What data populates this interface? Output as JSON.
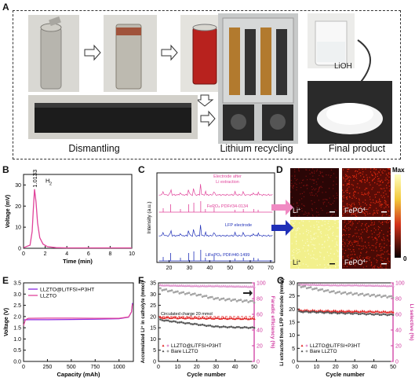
{
  "panels": {
    "A": {
      "label": "A",
      "captions": [
        "Dismantling",
        "Lithium recycling",
        "Final product"
      ],
      "lioh_label": "LiOH"
    },
    "B": {
      "label": "B",
      "peak_label": "1.0133",
      "peak_species": "H",
      "peak_sub": "2",
      "xlabel": "Time (min)",
      "ylabel": "Voltage (mV)",
      "xticks": [
        "0",
        "2",
        "4",
        "6",
        "8",
        "10"
      ],
      "yticks": [
        "0",
        "10",
        "20",
        "30"
      ]
    },
    "C": {
      "label": "C",
      "xlabel": "2θ (degree)",
      "ylabel": "Intensity (a.u.)",
      "xticks": [
        "20",
        "30",
        "40",
        "50",
        "60",
        "70"
      ],
      "traces": [
        {
          "name": "Electrode after",
          "name2": "Li extraction",
          "color": "#e0439a"
        },
        {
          "name": "FePO₄  PDF#34-0134",
          "color": "#e0439a"
        },
        {
          "name": "LFP electrode",
          "color": "#1f2fb8"
        },
        {
          "name": "LiFePO₄  PDF#40-1499",
          "color": "#1f2fb8"
        }
      ]
    },
    "D": {
      "label": "D",
      "maps": [
        "Li",
        "FePO",
        "Li",
        "FePO"
      ],
      "map_sup": [
        "+",
        "4−",
        "+",
        "4−"
      ],
      "colorbar_max": "Max",
      "colorbar_min": "0"
    },
    "E": {
      "label": "E",
      "legend": [
        "LLZTO@LiTFSI+P3HT",
        "LLZTO"
      ],
      "xlabel": "Capacity (mAh)",
      "ylabel": "Voltage (V)",
      "xticks": [
        "0",
        "250",
        "500",
        "750",
        "1000"
      ],
      "yticks": [
        "0.0",
        "0.5",
        "1.0",
        "1.5",
        "2.0",
        "2.5",
        "3.0",
        "3.5"
      ],
      "colors": {
        "a": "#8a2be2",
        "b": "#e0439a"
      }
    },
    "F": {
      "label": "F",
      "legend": [
        "LLZTO@LiTFSI+P3HT",
        "Bare LLZTO"
      ],
      "annotation": "Circulated charge 20 mmol",
      "xlabel": "Cycle number",
      "ylabel_left": "Accumulated Li⁺ in catholyte (mmol)",
      "ylabel_right": "Faradic efficiency (%)",
      "xticks": [
        "0",
        "10",
        "20",
        "30",
        "40",
        "50"
      ],
      "yticks_left": [
        "0",
        "5",
        "10",
        "15",
        "20",
        "25",
        "30",
        "35"
      ],
      "yticks_right": [
        "0",
        "20",
        "40",
        "60",
        "80",
        "100"
      ]
    },
    "G": {
      "label": "G",
      "legend": [
        "LLZTO@LiTFSI+P3HT",
        "Bare LLZTO"
      ],
      "xlabel": "Cycle number",
      "ylabel_left": "Li extracted from LFP electrode (mmol)",
      "ylabel_right": "Li selective (%)",
      "xticks": [
        "0",
        "10",
        "20",
        "30",
        "40",
        "50"
      ],
      "yticks_left": [
        "0",
        "5",
        "10",
        "15",
        "20",
        "25",
        "30"
      ],
      "yticks_right": [
        "0",
        "20",
        "40",
        "60",
        "80",
        "100"
      ]
    }
  },
  "chart_data": [
    {
      "panel": "B",
      "type": "line",
      "xlabel": "Time (min)",
      "ylabel": "Voltage (mV)",
      "xlim": [
        0,
        10
      ],
      "ylim": [
        0,
        35
      ],
      "annotation": "1.0133 H2",
      "series": [
        {
          "x": [
            0,
            0.6,
            0.8,
            0.9,
            1.0133,
            1.15,
            1.3,
            1.5,
            1.8,
            2.2,
            3,
            4,
            6,
            8,
            10
          ],
          "y": [
            0.3,
            1.5,
            8,
            18,
            28,
            22,
            12,
            5,
            2,
            0.8,
            0.3,
            0.2,
            0.2,
            0.2,
            0.2
          ]
        }
      ]
    },
    {
      "panel": "E",
      "type": "line",
      "xlabel": "Capacity (mAh)",
      "ylabel": "Voltage (V)",
      "xlim": [
        0,
        1150
      ],
      "ylim": [
        0,
        3.5
      ],
      "series": [
        {
          "name": "LLZTO@LiTFSI+P3HT",
          "x": [
            0,
            50,
            250,
            500,
            750,
            1000,
            1100,
            1130,
            1140
          ],
          "y": [
            1.85,
            1.86,
            1.86,
            1.87,
            1.88,
            1.9,
            1.97,
            2.2,
            2.6
          ]
        },
        {
          "name": "LLZTO",
          "x": [
            0,
            20,
            50,
            250,
            500,
            750,
            1000,
            1100,
            1130,
            1140
          ],
          "y": [
            1.6,
            1.85,
            1.92,
            1.93,
            1.93,
            1.92,
            1.92,
            1.98,
            2.2,
            2.55
          ]
        }
      ]
    },
    {
      "panel": "F",
      "type": "scatter",
      "xlabel": "Cycle number",
      "xlim": [
        0,
        50
      ],
      "ylabel": "Accumulated Li+ in catholyte (mmol)",
      "ylim": [
        0,
        35
      ],
      "ylabel_right": "Faradic efficiency (%)",
      "ylim_right": [
        0,
        100
      ],
      "series": [
        {
          "name": "LLZTO@LiTFSI+P3HT (Li+ accumulated)",
          "x": [
            1,
            10,
            20,
            30,
            40,
            50
          ],
          "y": [
            19.5,
            19.4,
            19.3,
            19.2,
            19.1,
            19.0
          ]
        },
        {
          "name": "Bare LLZTO (Li+ accumulated)",
          "x": [
            1,
            10,
            20,
            30,
            40,
            50
          ],
          "y": [
            18.5,
            17.5,
            16.5,
            15.5,
            15.2,
            15.0
          ]
        },
        {
          "name": "LLZTO@LiTFSI+P3HT (Faradic efficiency)",
          "x": [
            1,
            10,
            20,
            30,
            40,
            50
          ],
          "y": [
            97,
            96.5,
            96,
            96,
            95.5,
            95
          ]
        },
        {
          "name": "Bare LLZTO (Faradic efficiency)",
          "x": [
            1,
            10,
            20,
            30,
            40,
            50
          ],
          "y": [
            92,
            88,
            85,
            80,
            78,
            76
          ]
        }
      ],
      "annotation": "Circulated charge 20 mmol"
    },
    {
      "panel": "G",
      "type": "scatter",
      "xlabel": "Cycle number",
      "xlim": [
        0,
        50
      ],
      "ylabel": "Li extracted from LFP electrode (mmol)",
      "ylim": [
        0,
        30
      ],
      "ylabel_right": "Li selective (%)",
      "ylim_right": [
        0,
        100
      ],
      "series": [
        {
          "name": "LLZTO@LiTFSI+P3HT (Li extracted)",
          "x": [
            1,
            10,
            20,
            30,
            40,
            50
          ],
          "y": [
            19.5,
            19.3,
            19.2,
            19.1,
            19.0,
            18.8
          ]
        },
        {
          "name": "Bare LLZTO (Li extracted)",
          "x": [
            1,
            10,
            20,
            30,
            40,
            50
          ],
          "y": [
            19.0,
            18.8,
            18.5,
            18.3,
            18.0,
            17.8
          ]
        },
        {
          "name": "LLZTO@LiTFSI+P3HT (Li selective)",
          "x": [
            1,
            10,
            20,
            30,
            40,
            50
          ],
          "y": [
            98,
            97.5,
            97,
            97,
            96.5,
            96
          ]
        },
        {
          "name": "Bare LLZTO (Li selective)",
          "x": [
            1,
            10,
            20,
            30,
            40,
            50
          ],
          "y": [
            96,
            92,
            88,
            86,
            84,
            82
          ]
        }
      ]
    }
  ]
}
